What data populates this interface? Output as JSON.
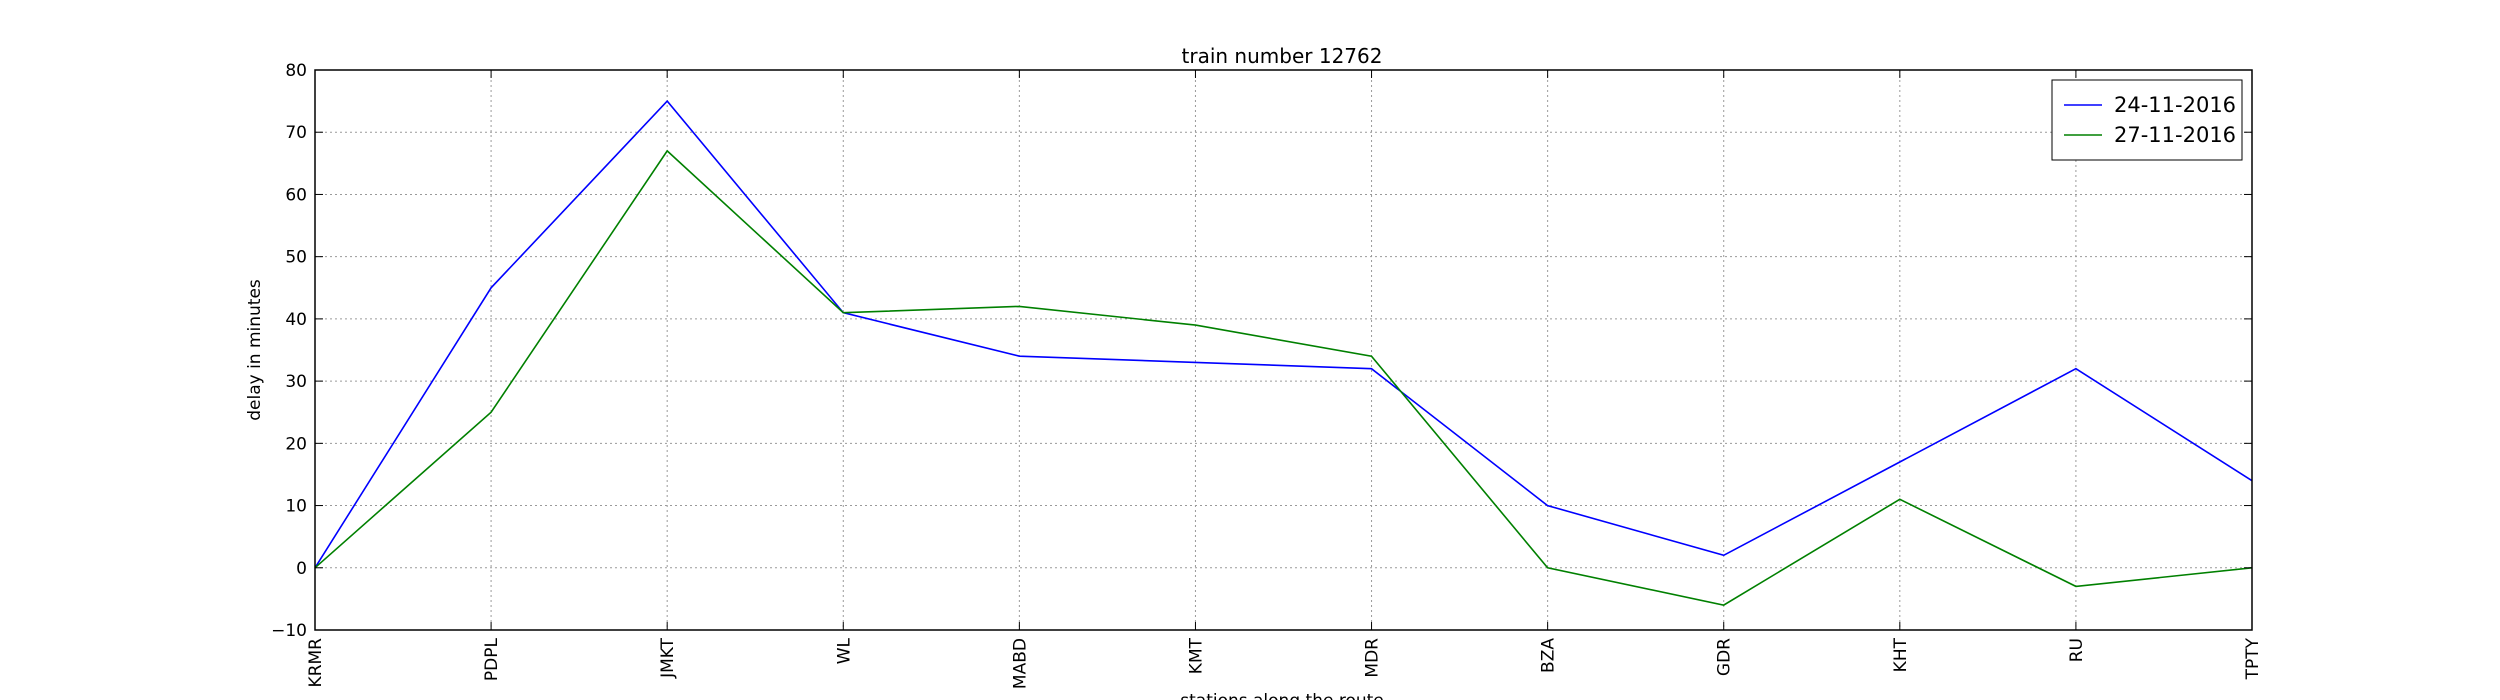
{
  "chart_data": {
    "type": "line",
    "title": "train number 12762",
    "xlabel": "stations along the route",
    "ylabel": "delay in minutes",
    "categories": [
      "KRMR",
      "PDPL",
      "JMKT",
      "WL",
      "MABD",
      "KMT",
      "MDR",
      "BZA",
      "GDR",
      "KHT",
      "RU",
      "TPTY"
    ],
    "ylim": [
      -10,
      80
    ],
    "yticks": [
      -10,
      0,
      10,
      20,
      30,
      40,
      50,
      60,
      70,
      80
    ],
    "grid": true,
    "legend_position": "top-right",
    "series": [
      {
        "name": "24-11-2016",
        "color": "#0000ff",
        "values": [
          0,
          45,
          75,
          41,
          34,
          33,
          32,
          10,
          2,
          17,
          32,
          14
        ]
      },
      {
        "name": "27-11-2016",
        "color": "#008000",
        "values": [
          0,
          25,
          67,
          41,
          42,
          39,
          34,
          0,
          -6,
          11,
          -3,
          0
        ]
      }
    ]
  }
}
